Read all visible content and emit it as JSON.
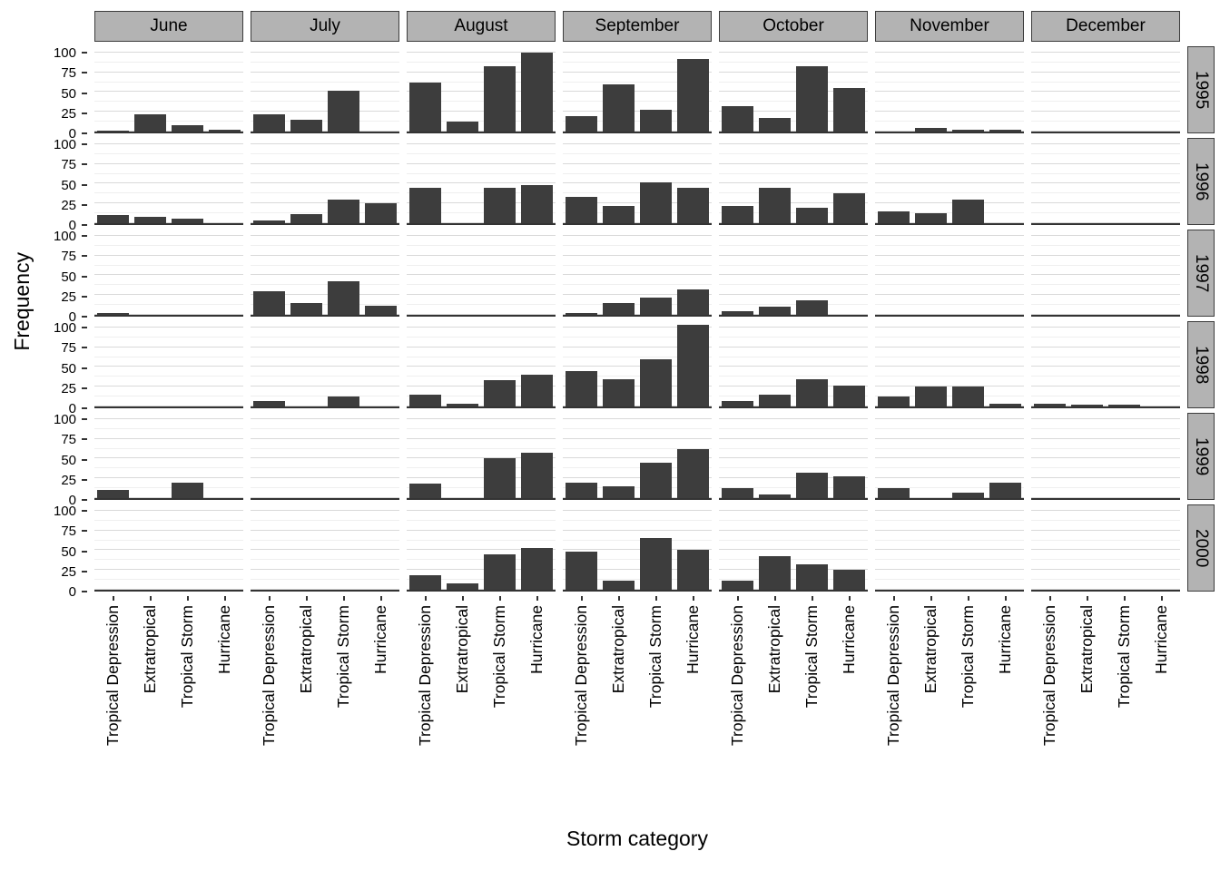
{
  "chart_data": {
    "type": "bar",
    "title": "",
    "xlabel": "Storm category",
    "ylabel": "Frequency",
    "ylim": [
      0,
      100
    ],
    "yticks": [
      0,
      25,
      50,
      75,
      100
    ],
    "grid": "on",
    "facet_cols": [
      "June",
      "July",
      "August",
      "September",
      "October",
      "November",
      "December"
    ],
    "facet_rows": [
      "1995",
      "1996",
      "1997",
      "1998",
      "1999",
      "2000"
    ],
    "categories": [
      "Tropical Depression",
      "Extratropical",
      "Tropical Storm",
      "Hurricane"
    ],
    "bar_color": "#3d3d3d",
    "strip_color": "#b3b3b3",
    "values": {
      "1995": {
        "June": [
          1,
          22,
          8,
          2
        ],
        "July": [
          22,
          15,
          52,
          0
        ],
        "August": [
          62,
          13,
          83,
          100
        ],
        "September": [
          20,
          60,
          28,
          92
        ],
        "October": [
          32,
          17,
          83,
          55
        ],
        "November": [
          0,
          5,
          2,
          2
        ],
        "December": [
          0,
          0,
          0,
          0
        ]
      },
      "1996": {
        "June": [
          10,
          8,
          6,
          0
        ],
        "July": [
          3,
          12,
          30,
          25
        ],
        "August": [
          45,
          0,
          45,
          48
        ],
        "September": [
          33,
          22,
          52,
          45
        ],
        "October": [
          22,
          45,
          20,
          38
        ],
        "November": [
          15,
          13,
          30,
          0
        ],
        "December": [
          0,
          0,
          0,
          0
        ]
      },
      "1997": {
        "June": [
          2,
          0,
          0,
          0
        ],
        "July": [
          30,
          15,
          42,
          12
        ],
        "August": [
          0,
          0,
          0,
          0
        ],
        "September": [
          2,
          15,
          22,
          32
        ],
        "October": [
          5,
          10,
          18,
          0
        ],
        "November": [
          0,
          0,
          0,
          0
        ],
        "December": [
          0,
          0,
          0,
          0
        ]
      },
      "1998": {
        "June": [
          0,
          0,
          0,
          0
        ],
        "July": [
          7,
          0,
          13,
          0
        ],
        "August": [
          15,
          3,
          33,
          40
        ],
        "September": [
          45,
          35,
          60,
          103
        ],
        "October": [
          7,
          15,
          35,
          27
        ],
        "November": [
          13,
          25,
          25,
          4
        ],
        "December": [
          4,
          2,
          2,
          0
        ]
      },
      "1999": {
        "June": [
          10,
          0,
          20,
          0
        ],
        "July": [
          0,
          0,
          0,
          0
        ],
        "August": [
          18,
          0,
          50,
          58
        ],
        "September": [
          20,
          15,
          45,
          62
        ],
        "October": [
          13,
          5,
          32,
          28
        ],
        "November": [
          13,
          0,
          7,
          20
        ],
        "December": [
          0,
          0,
          0,
          0
        ]
      },
      "2000": {
        "June": [
          0,
          0,
          0,
          0
        ],
        "July": [
          0,
          0,
          0,
          0
        ],
        "August": [
          18,
          8,
          45,
          53
        ],
        "September": [
          48,
          12,
          65,
          50
        ],
        "October": [
          12,
          42,
          32,
          25
        ],
        "November": [
          0,
          0,
          0,
          0
        ],
        "December": [
          0,
          0,
          0,
          0
        ]
      }
    }
  }
}
